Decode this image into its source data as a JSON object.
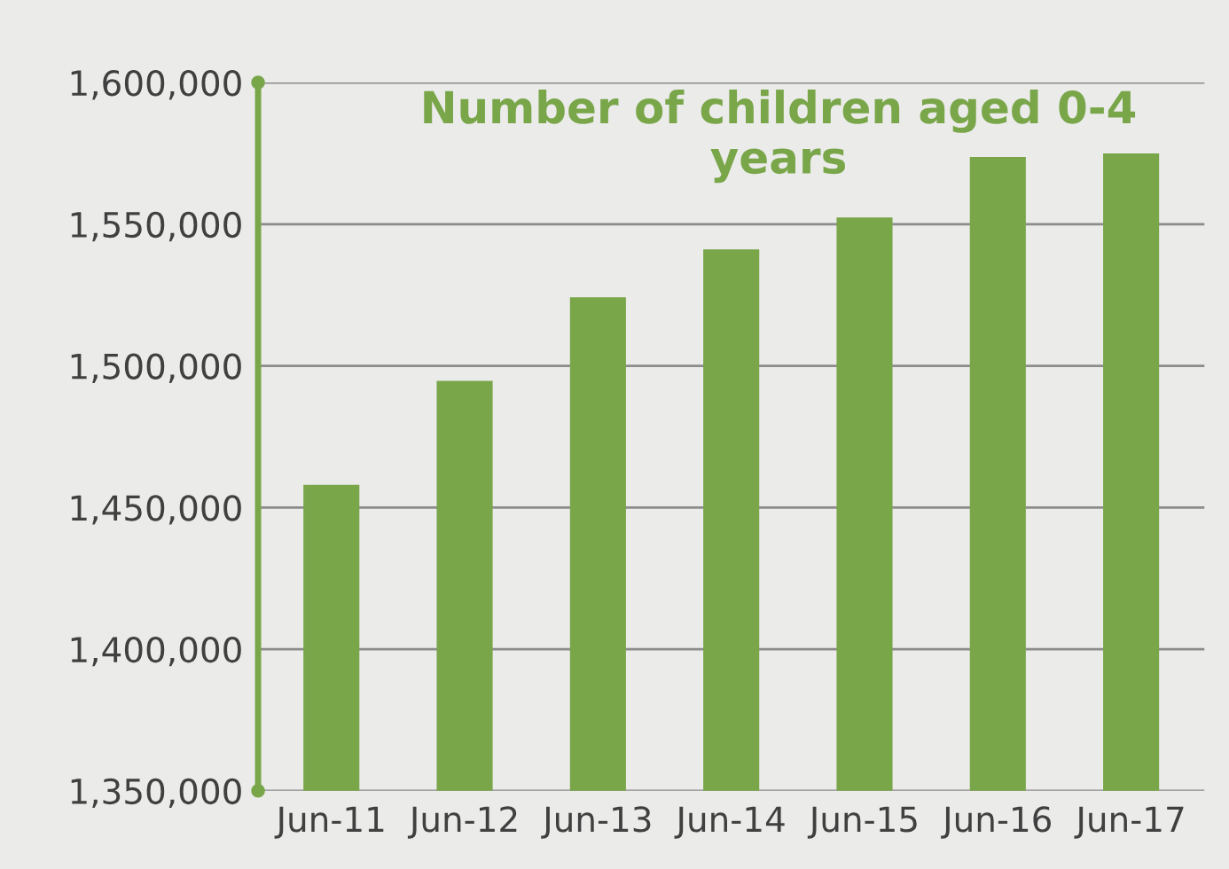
{
  "chart_data": {
    "type": "bar",
    "title": "Number of children aged 0-4\nyears",
    "categories": [
      "Jun-11",
      "Jun-12",
      "Jun-13",
      "Jun-14",
      "Jun-15",
      "Jun-16",
      "Jun-17"
    ],
    "values": [
      1458000,
      1494700,
      1524200,
      1541100,
      1552400,
      1573700,
      1575000
    ],
    "color": "#7aa64a",
    "ylim": [
      1350000,
      1600000
    ],
    "yticks": [
      {
        "value": 1350000,
        "label": "1,350,000"
      },
      {
        "value": 1400000,
        "label": "1,400,000"
      },
      {
        "value": 1450000,
        "label": "1,450,000"
      },
      {
        "value": 1500000,
        "label": "1,500,000"
      },
      {
        "value": 1550000,
        "label": "1,550,000"
      },
      {
        "value": 1600000,
        "label": "1,600,000"
      }
    ],
    "grid": "y"
  }
}
